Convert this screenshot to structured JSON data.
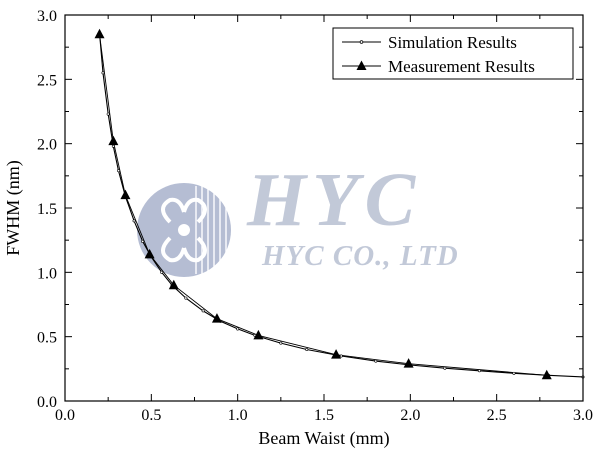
{
  "chart_data": {
    "type": "line",
    "title": "",
    "xlabel": "Beam Waist (mm)",
    "ylabel": "FWHM (nm)",
    "xlim": [
      0.0,
      3.0
    ],
    "ylim": [
      0.0,
      3.0
    ],
    "xticks": [
      "0.0",
      "0.5",
      "1.0",
      "1.5",
      "2.0",
      "2.5",
      "3.0"
    ],
    "yticks": [
      "0.0",
      "0.5",
      "1.0",
      "1.5",
      "2.0",
      "2.5",
      "3.0"
    ],
    "xtick_values": [
      0.0,
      0.5,
      1.0,
      1.5,
      2.0,
      2.5,
      3.0
    ],
    "ytick_values": [
      0.0,
      0.5,
      1.0,
      1.5,
      2.0,
      2.5,
      3.0
    ],
    "grid": false,
    "legend_position": "top-right",
    "series": [
      {
        "name": "Simulation Results",
        "style": "line-small-dot",
        "x": [
          0.2,
          0.22,
          0.25,
          0.28,
          0.31,
          0.35,
          0.4,
          0.45,
          0.5,
          0.56,
          0.62,
          0.7,
          0.8,
          0.9,
          1.0,
          1.1,
          1.25,
          1.4,
          1.6,
          1.8,
          2.0,
          2.2,
          2.4,
          2.6,
          2.8,
          3.0
        ],
        "values": [
          2.86,
          2.55,
          2.23,
          1.98,
          1.79,
          1.59,
          1.4,
          1.24,
          1.12,
          1.0,
          0.9,
          0.8,
          0.7,
          0.62,
          0.56,
          0.51,
          0.45,
          0.4,
          0.35,
          0.31,
          0.28,
          0.255,
          0.235,
          0.215,
          0.2,
          0.187
        ]
      },
      {
        "name": "Measurement Results",
        "style": "line-triangle",
        "x": [
          0.2,
          0.28,
          0.35,
          0.49,
          0.63,
          0.88,
          1.12,
          1.57,
          1.99,
          2.79
        ],
        "values": [
          2.85,
          2.02,
          1.6,
          1.14,
          0.9,
          0.64,
          0.51,
          0.36,
          0.29,
          0.2
        ]
      }
    ],
    "watermark": {
      "main": "HYC",
      "sub": "HYC CO., LTD"
    }
  },
  "colors": {
    "line": "#000000",
    "watermark": "#b4bccf",
    "logo": "#a9b2cc"
  }
}
